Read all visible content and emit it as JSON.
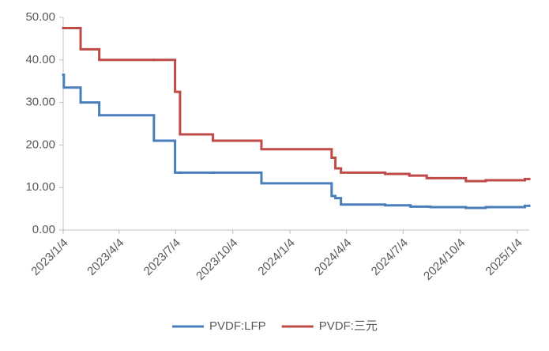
{
  "chart_data": {
    "type": "step-line",
    "x": [
      "2023/1/4",
      "2023/1/5",
      "2023/2/1",
      "2023/3/3",
      "2023/5/30",
      "2023/7/3",
      "2023/7/11",
      "2023/9/2",
      "2023/11/19",
      "2024/3/11",
      "2024/3/17",
      "2024/3/26",
      "2024/6/5",
      "2024/7/14",
      "2024/7/16",
      "2024/8/11",
      "2024/8/17",
      "2024/10/13",
      "2024/11/14",
      "2025/1/16"
    ],
    "series": [
      {
        "name": "PVDF:LFP",
        "color": "#4a7ebb",
        "values": [
          36.5,
          33.5,
          30,
          27,
          21,
          13.5,
          13.5,
          13.5,
          11,
          8,
          7.5,
          6,
          5.8,
          5.8,
          5.5,
          5.5,
          5.4,
          5.2,
          5.4,
          5.7
        ]
      },
      {
        "name": "PVDF:三元",
        "color": "#be4b48",
        "values": [
          47.5,
          47.5,
          42.5,
          40,
          40,
          32.5,
          22.5,
          21,
          19,
          17,
          14.5,
          13.5,
          13.2,
          12.8,
          12.8,
          12.2,
          12.2,
          11.5,
          11.7,
          12
        ]
      }
    ],
    "xlim": [
      "2023/1/4",
      "2025/1/23"
    ],
    "xticks": [
      "2023/1/4",
      "2023/4/4",
      "2023/7/4",
      "2023/10/4",
      "2024/1/4",
      "2024/4/4",
      "2024/7/4",
      "2024/10/4",
      "2025/1/4"
    ],
    "ylim": [
      0,
      50
    ],
    "yticks": [
      {
        "value": 0,
        "label": "0.00"
      },
      {
        "value": 10,
        "label": "10.00"
      },
      {
        "value": 20,
        "label": "20.00"
      },
      {
        "value": 30,
        "label": "30.00"
      },
      {
        "value": 40,
        "label": "40.00"
      },
      {
        "value": 50,
        "label": "50.00"
      }
    ],
    "legend": "bottom"
  }
}
